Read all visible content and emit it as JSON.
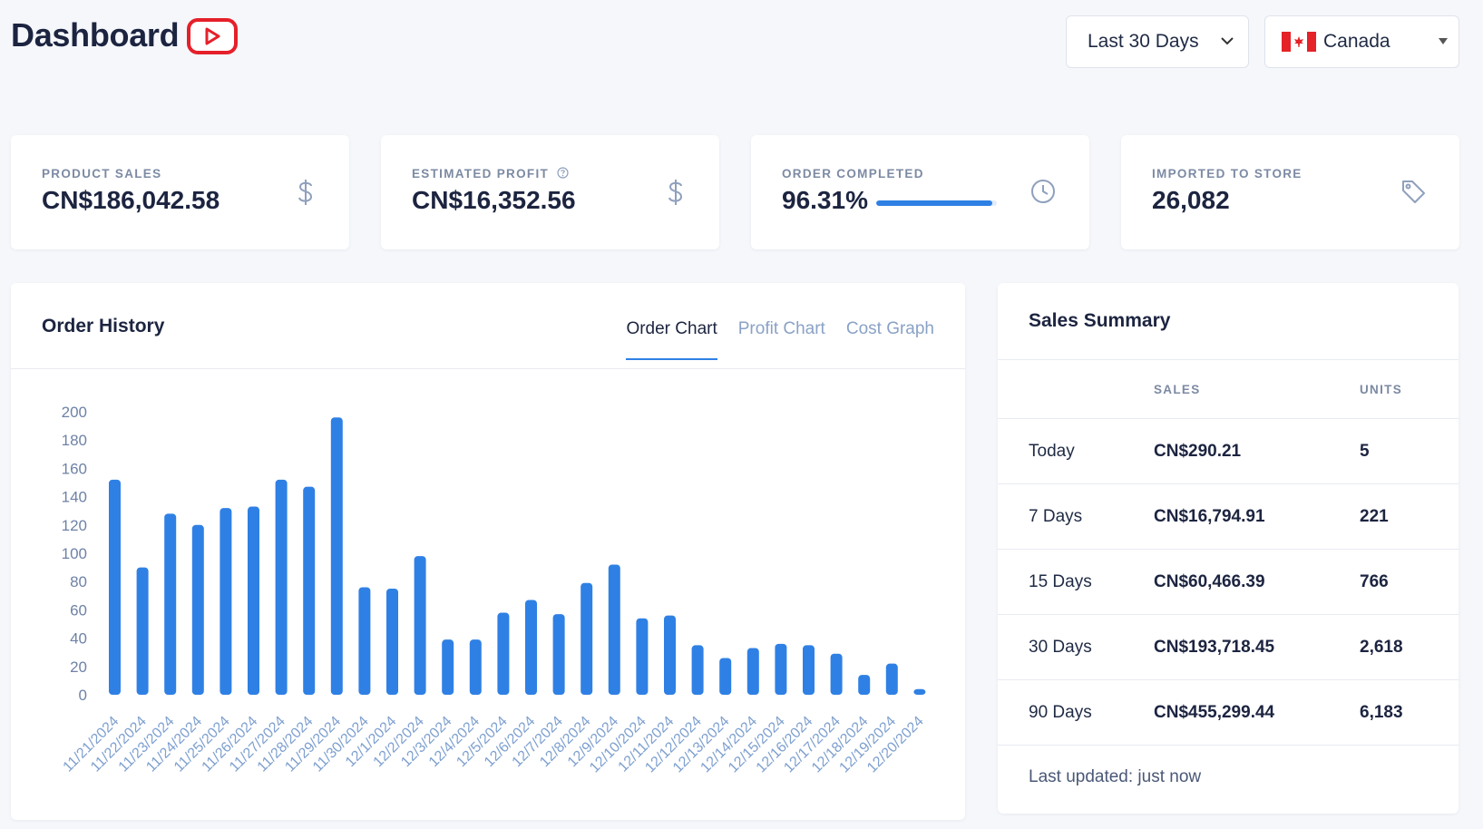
{
  "header": {
    "title": "Dashboard",
    "youtube_icon": "youtube-play-icon",
    "range_select": "Last 30 Days",
    "country_select": "Canada"
  },
  "stats": [
    {
      "label": "PRODUCT SALES",
      "value": "CN$186,042.58",
      "icon": "dollar-icon"
    },
    {
      "label": "ESTIMATED PROFIT",
      "value": "CN$16,352.56",
      "icon": "dollar-icon",
      "info_icon": "question-circle-icon"
    },
    {
      "label": "ORDER COMPLETED",
      "value": "96.31%",
      "icon": "clock-icon",
      "progress": 96.31
    },
    {
      "label": "IMPORTED TO STORE",
      "value": "26,082",
      "icon": "tag-icon"
    }
  ],
  "order_history": {
    "title": "Order History",
    "tabs": [
      "Order Chart",
      "Profit Chart",
      "Cost Graph"
    ],
    "active_tab": "Order Chart"
  },
  "chart_data": {
    "type": "bar",
    "categories": [
      "11/21/2024",
      "11/22/2024",
      "11/23/2024",
      "11/24/2024",
      "11/25/2024",
      "11/26/2024",
      "11/27/2024",
      "11/28/2024",
      "11/29/2024",
      "11/30/2024",
      "12/1/2024",
      "12/2/2024",
      "12/3/2024",
      "12/4/2024",
      "12/5/2024",
      "12/6/2024",
      "12/7/2024",
      "12/8/2024",
      "12/9/2024",
      "12/10/2024",
      "12/11/2024",
      "12/12/2024",
      "12/13/2024",
      "12/14/2024",
      "12/15/2024",
      "12/16/2024",
      "12/17/2024",
      "12/18/2024",
      "12/19/2024",
      "12/20/2024"
    ],
    "values": [
      152,
      90,
      128,
      120,
      132,
      133,
      152,
      147,
      196,
      76,
      75,
      98,
      39,
      39,
      58,
      67,
      57,
      79,
      92,
      54,
      56,
      35,
      26,
      33,
      36,
      35,
      29,
      14,
      22,
      4
    ],
    "yticks": [
      0,
      20,
      40,
      60,
      80,
      100,
      120,
      140,
      160,
      180,
      200
    ],
    "ylim": [
      0,
      200
    ],
    "color": "#2f80e4"
  },
  "sales_summary": {
    "title": "Sales Summary",
    "columns": [
      "",
      "SALES",
      "UNITS"
    ],
    "rows": [
      {
        "period": "Today",
        "sales": "CN$290.21",
        "units": "5"
      },
      {
        "period": "7 Days",
        "sales": "CN$16,794.91",
        "units": "221"
      },
      {
        "period": "15 Days",
        "sales": "CN$60,466.39",
        "units": "766"
      },
      {
        "period": "30 Days",
        "sales": "CN$193,718.45",
        "units": "2,618"
      },
      {
        "period": "90 Days",
        "sales": "CN$455,299.44",
        "units": "6,183"
      }
    ],
    "footer": "Last updated: just now"
  },
  "colors": {
    "accent": "#2f80e4",
    "brand_red": "#e5202a",
    "background": "#f5f7fb"
  }
}
